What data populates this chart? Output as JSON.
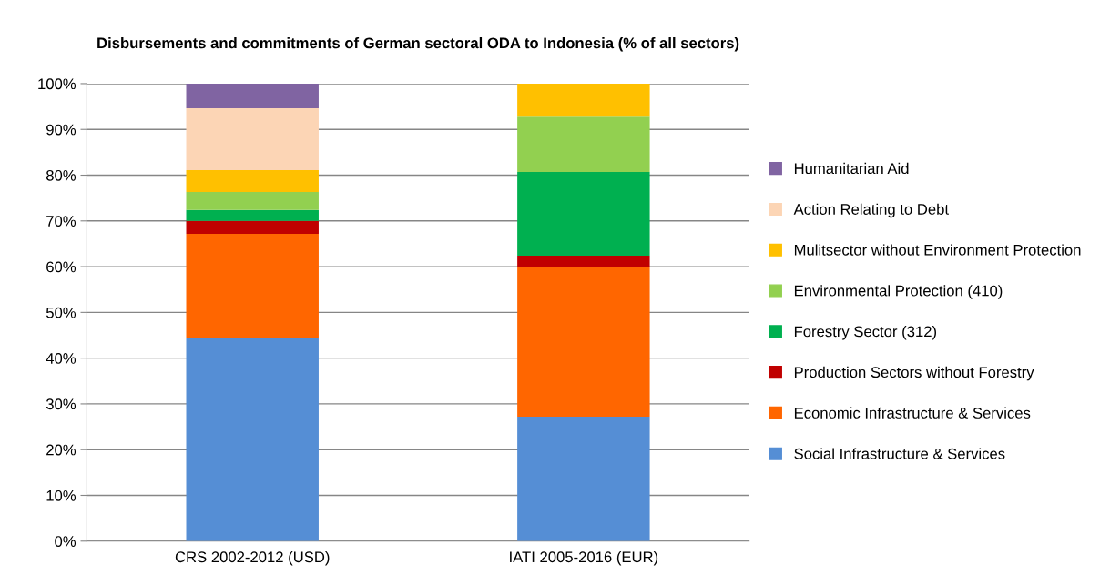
{
  "chart_data": {
    "type": "bar",
    "stacked": true,
    "title": "Disbursements and commitments of German sectoral ODA to Indonesia (% of all sectors)",
    "categories": [
      "CRS 2002-2012 (USD)",
      "IATI 2005-2016 (EUR)"
    ],
    "series": [
      {
        "name": "Social Infrastructure & Services",
        "color": "#558ed5",
        "values": [
          44.5,
          27.2
        ]
      },
      {
        "name": "Economic Infrastructure & Services",
        "color": "#ff6600",
        "values": [
          22.7,
          32.8
        ]
      },
      {
        "name": "Production Sectors without Forestry",
        "color": "#c00000",
        "values": [
          2.8,
          2.4
        ]
      },
      {
        "name": "Forestry Sector (312)",
        "color": "#00b050",
        "values": [
          2.4,
          18.3
        ]
      },
      {
        "name": "Environmental Protection (410)",
        "color": "#92d050",
        "values": [
          3.9,
          12.1
        ]
      },
      {
        "name": "Mulitsector without Environment Protection",
        "color": "#ffc000",
        "values": [
          4.8,
          7.2
        ]
      },
      {
        "name": "Action Relating to Debt",
        "color": "#fcd5b5",
        "values": [
          13.5,
          null
        ]
      },
      {
        "name": "Humanitarian Aid",
        "color": "#8064a2",
        "values": [
          5.4,
          null
        ]
      }
    ],
    "ylim": [
      0,
      100
    ],
    "yticks": [
      {
        "value": 0,
        "label": "0%"
      },
      {
        "value": 10,
        "label": "10%"
      },
      {
        "value": 20,
        "label": "20%"
      },
      {
        "value": 30,
        "label": "30%"
      },
      {
        "value": 40,
        "label": "40%"
      },
      {
        "value": 50,
        "label": "50%"
      },
      {
        "value": 60,
        "label": "60%"
      },
      {
        "value": 70,
        "label": "70%"
      },
      {
        "value": 80,
        "label": "80%"
      },
      {
        "value": 90,
        "label": "90%"
      },
      {
        "value": 100,
        "label": "100%"
      }
    ],
    "grid": "y",
    "legend": "right"
  }
}
